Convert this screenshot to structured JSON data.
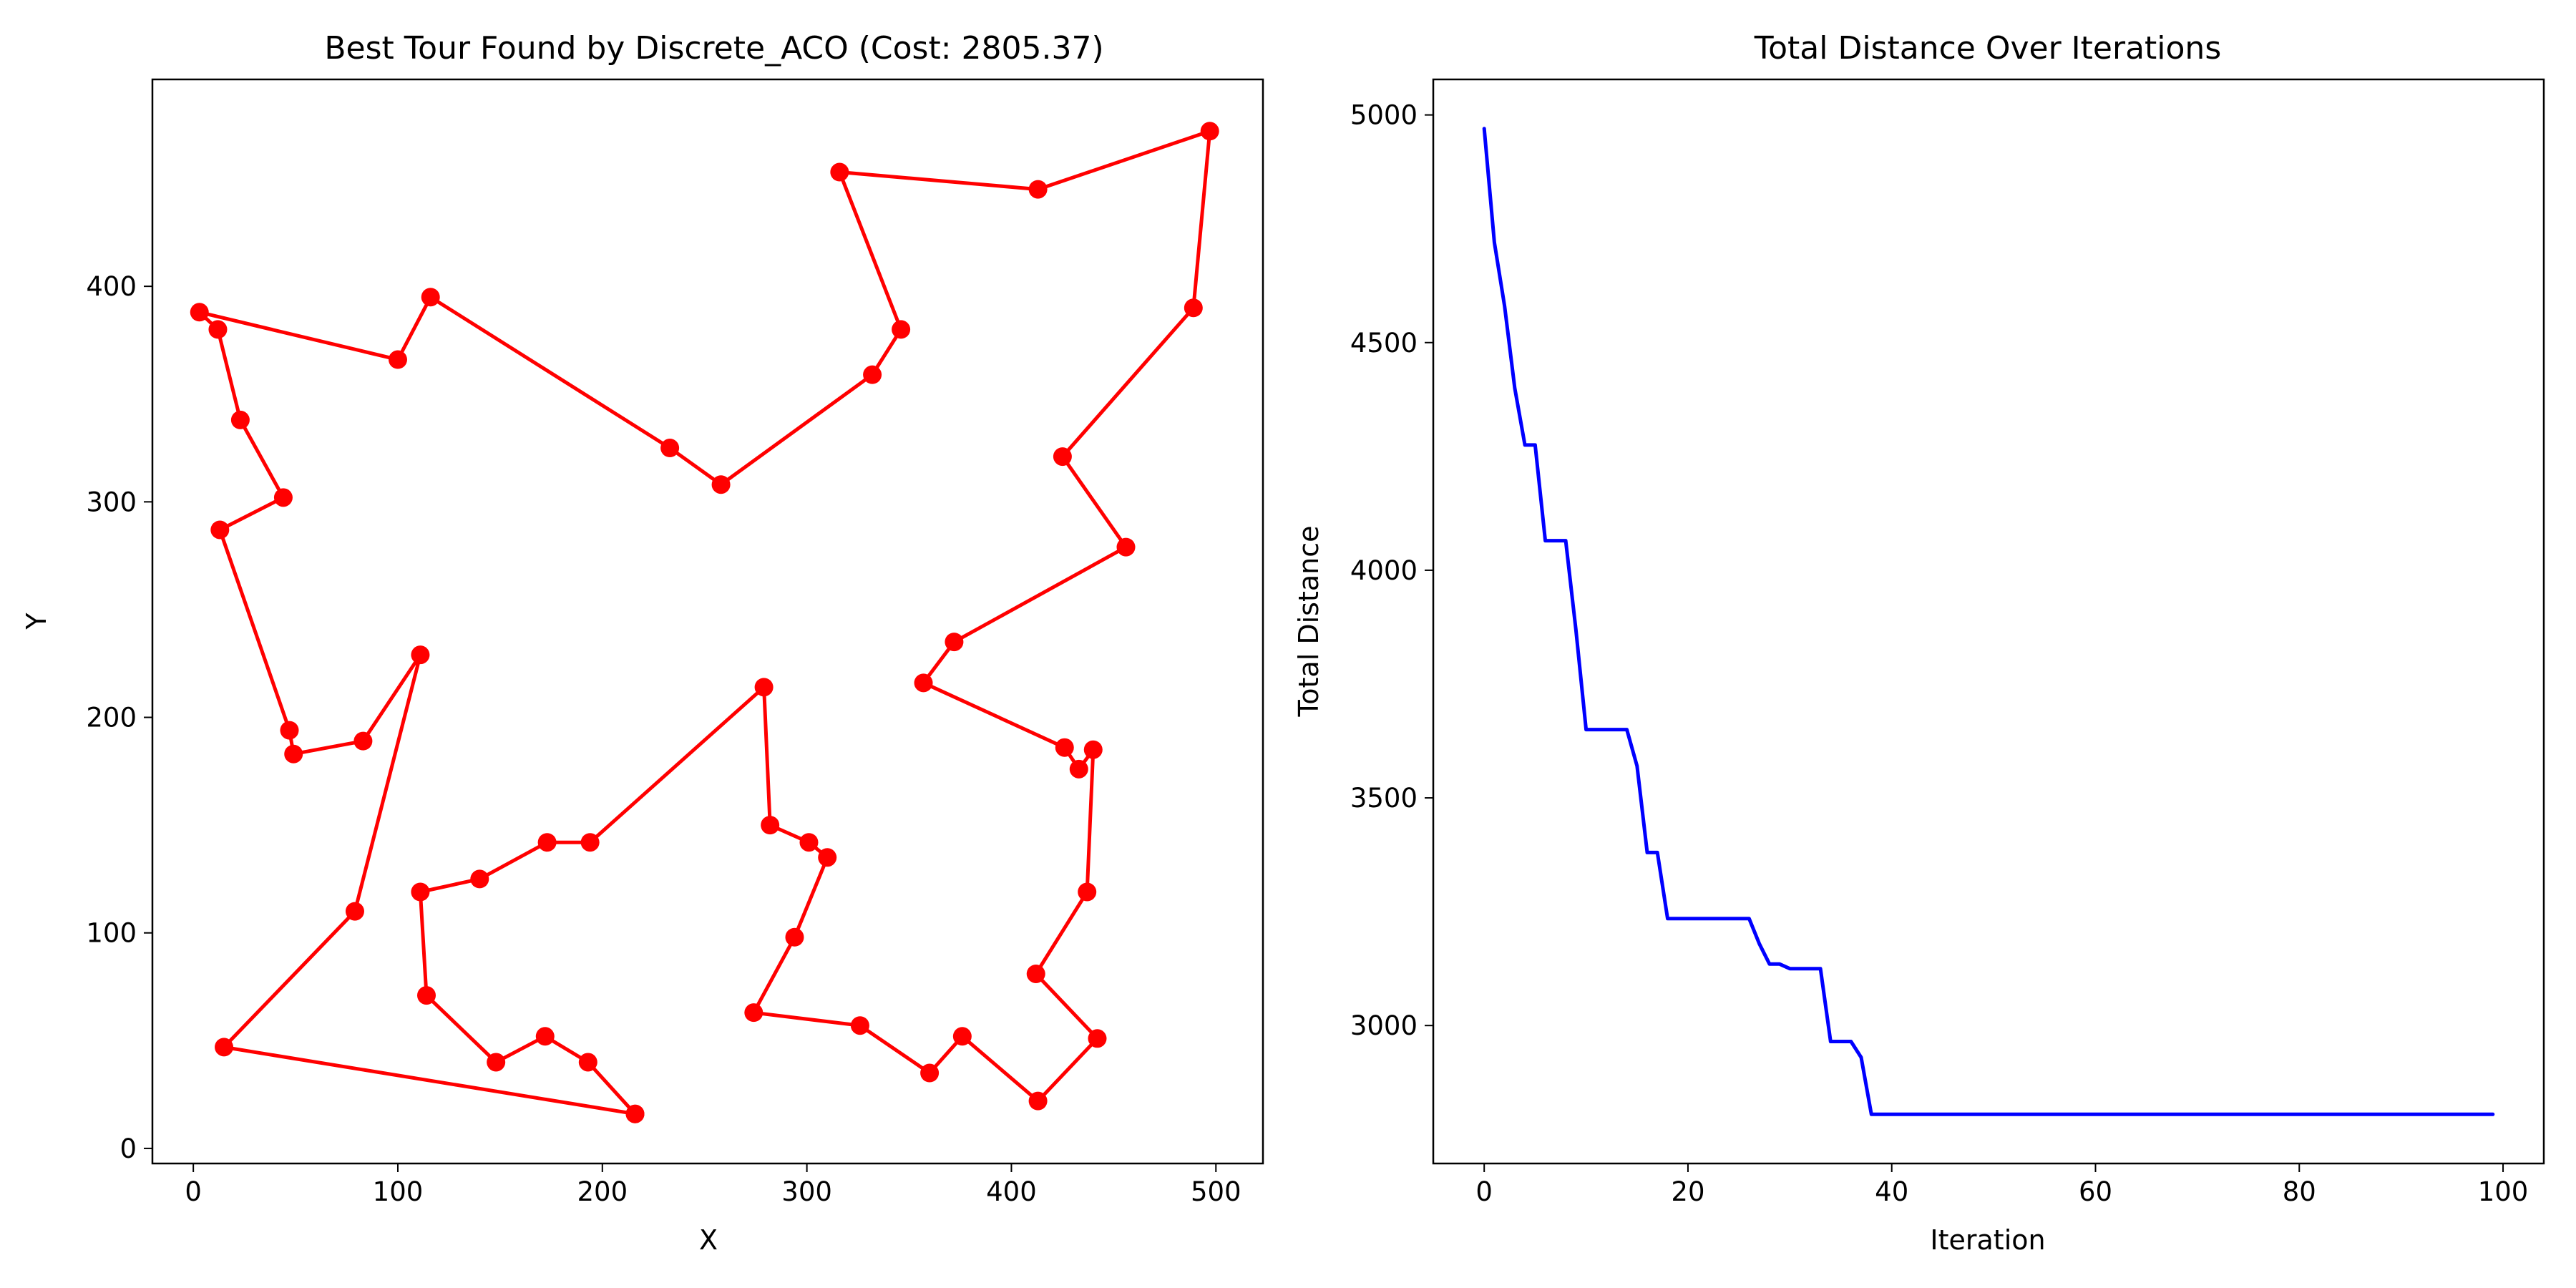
{
  "chart_data": [
    {
      "type": "line",
      "title": "Best Tour Found by Discrete_ACO (Cost: 2805.37)",
      "xlabel": "X",
      "ylabel": "Y",
      "xlim": [
        -20,
        523
      ],
      "ylim": [
        -7,
        496
      ],
      "xticks": [
        0,
        100,
        200,
        300,
        400,
        500
      ],
      "yticks": [
        0,
        100,
        200,
        300,
        400
      ],
      "grid": false,
      "legend": "none",
      "color": "#ff0000",
      "marker": "circle",
      "series": [
        {
          "x": [
            216,
            15,
            79,
            111,
            83,
            49,
            47,
            13,
            44,
            23,
            12,
            3,
            100,
            116,
            233,
            258,
            332,
            346,
            316,
            413,
            497,
            489,
            425,
            456,
            372,
            357,
            426,
            433,
            440,
            437,
            412,
            442,
            413,
            376,
            360,
            326,
            274,
            294,
            310,
            301,
            282,
            279,
            194,
            173,
            140,
            111,
            114,
            148,
            172,
            193,
            216
          ],
          "y": [
            16,
            47,
            110,
            229,
            189,
            183,
            194,
            287,
            302,
            338,
            380,
            388,
            366,
            395,
            325,
            308,
            359,
            380,
            453,
            445,
            472,
            390,
            321,
            279,
            235,
            216,
            186,
            176,
            185,
            119,
            81,
            51,
            22,
            52,
            35,
            57,
            63,
            98,
            135,
            142,
            150,
            214,
            142,
            142,
            125,
            119,
            71,
            40,
            52,
            40,
            16
          ]
        }
      ]
    },
    {
      "type": "line",
      "title": "Total Distance Over Iterations",
      "xlabel": "Iteration",
      "ylabel": "Total Distance",
      "xlim": [
        -5,
        104
      ],
      "ylim": [
        2697,
        5078
      ],
      "xticks": [
        0,
        20,
        40,
        60,
        80,
        100
      ],
      "yticks": [
        3000,
        3500,
        4000,
        4500,
        5000
      ],
      "grid": false,
      "legend": "none",
      "color": "#0000ff",
      "series": [
        {
          "x": [
            0,
            1,
            2,
            3,
            4,
            5,
            6,
            7,
            8,
            9,
            10,
            11,
            12,
            13,
            14,
            15,
            16,
            17,
            18,
            19,
            20,
            21,
            22,
            23,
            24,
            25,
            26,
            27,
            28,
            29,
            30,
            31,
            32,
            33,
            34,
            35,
            36,
            37,
            38,
            39,
            40,
            45,
            50,
            55,
            60,
            65,
            70,
            75,
            80,
            85,
            90,
            95,
            99
          ],
          "y": [
            4970,
            4720,
            4580,
            4400,
            4275,
            4275,
            4065,
            4065,
            4065,
            3870,
            3650,
            3650,
            3650,
            3650,
            3650,
            3570,
            3380,
            3380,
            3235,
            3235,
            3235,
            3235,
            3235,
            3235,
            3235,
            3235,
            3235,
            3180,
            3135,
            3135,
            3125,
            3125,
            3125,
            3125,
            2965,
            2965,
            2965,
            2930,
            2805,
            2805,
            2805,
            2805,
            2805,
            2805,
            2805,
            2805,
            2805,
            2805,
            2805,
            2805,
            2805,
            2805,
            2805
          ]
        }
      ]
    }
  ]
}
